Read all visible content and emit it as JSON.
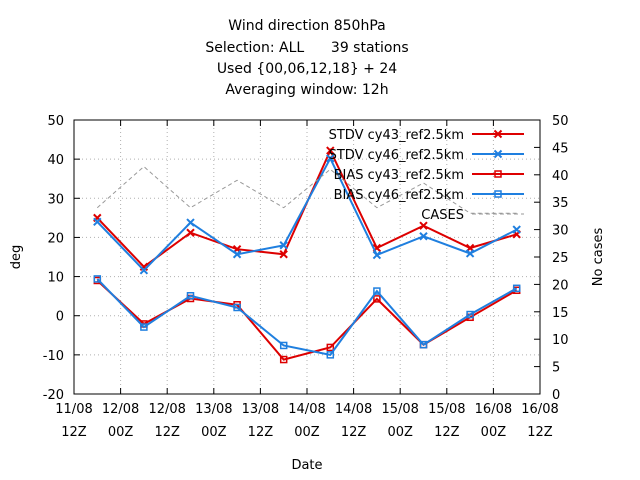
{
  "chart_data": {
    "type": "line",
    "title_lines": [
      "Wind direction 850hPa",
      "Selection: ALL      39 stations",
      "Used {00,06,12,18} + 24",
      "Averaging window: 12h"
    ],
    "xlabel": "Date",
    "ylabel": "deg",
    "y2label": "No cases",
    "ylim": [
      -20,
      50
    ],
    "y2lim": [
      0,
      50
    ],
    "yticks": [
      "-20",
      "-10",
      "0",
      "10",
      "20",
      "30",
      "40",
      "50"
    ],
    "y2ticks": [
      "0",
      "5",
      "10",
      "15",
      "20",
      "25",
      "30",
      "35",
      "40",
      "45",
      "50"
    ],
    "xlim": [
      "2011-08-11T12:00",
      "2011-08-16T12:00"
    ],
    "xticks": [
      {
        "line1": "11/08",
        "line2": "12Z"
      },
      {
        "line1": "12/08",
        "line2": "00Z"
      },
      {
        "line1": "12/08",
        "line2": "12Z"
      },
      {
        "line1": "13/08",
        "line2": "00Z"
      },
      {
        "line1": "13/08",
        "line2": "12Z"
      },
      {
        "line1": "14/08",
        "line2": "00Z"
      },
      {
        "line1": "14/08",
        "line2": "12Z"
      },
      {
        "line1": "15/08",
        "line2": "00Z"
      },
      {
        "line1": "15/08",
        "line2": "12Z"
      },
      {
        "line1": "16/08",
        "line2": "00Z"
      },
      {
        "line1": "16/08",
        "line2": "12Z"
      }
    ],
    "grid": true,
    "legend_position": "top-right",
    "x": [
      "2011-08-11T18:00",
      "2011-08-12T06:00",
      "2011-08-12T18:00",
      "2011-08-13T06:00",
      "2011-08-13T18:00",
      "2011-08-14T06:00",
      "2011-08-14T18:00",
      "2011-08-15T06:00",
      "2011-08-15T18:00",
      "2011-08-16T06:00"
    ],
    "series": [
      {
        "name": "STDV cy43_ref2.5km",
        "color": "#dd0000",
        "marker": "x",
        "axis": "y",
        "values": [
          25,
          12.5,
          21.2,
          17,
          15.7,
          42.2,
          17.3,
          23,
          17.3,
          20.8
        ]
      },
      {
        "name": "STDV cy46_ref2.5km",
        "color": "#1f7fdf",
        "marker": "x",
        "axis": "y",
        "values": [
          24,
          11.6,
          23.8,
          15.7,
          18,
          40.2,
          15.5,
          20.3,
          15.9,
          22
        ]
      },
      {
        "name": "BIAS cy43_ref2.5km",
        "color": "#dd0000",
        "marker": "square",
        "axis": "y",
        "values": [
          9,
          -2.1,
          4.4,
          2.8,
          -11.2,
          -8.1,
          4.3,
          -7.4,
          -0.4,
          6.5
        ]
      },
      {
        "name": "BIAS cy46_ref2.5km",
        "color": "#1f7fdf",
        "marker": "square",
        "axis": "y",
        "values": [
          9.4,
          -2.9,
          5.1,
          2.1,
          -7.6,
          -10,
          6.3,
          -7.4,
          0.3,
          7
        ]
      },
      {
        "name": "CASES",
        "color": "#999999",
        "marker": "none",
        "axis": "y2",
        "dashed": true,
        "values": [
          34,
          41.5,
          34,
          39,
          34,
          41,
          34,
          38.5,
          33,
          33
        ]
      }
    ]
  }
}
